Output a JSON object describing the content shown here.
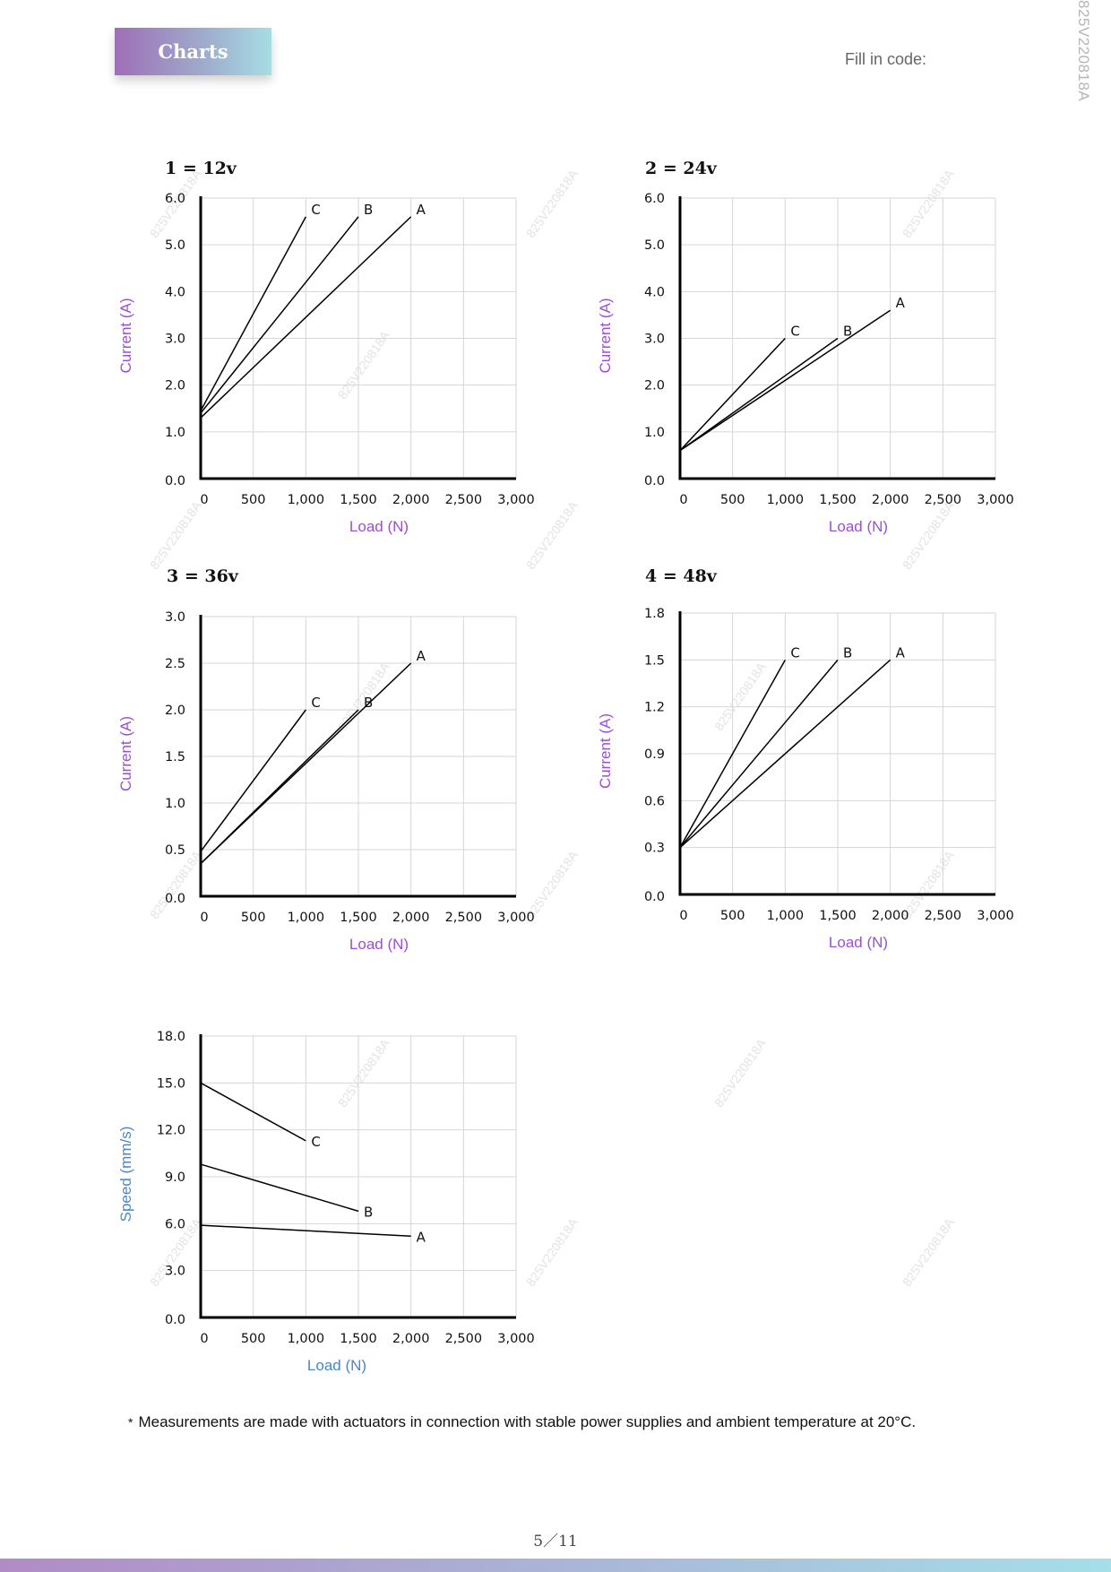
{
  "header": {
    "badge_label": "Charts",
    "fill_code_label": "Fill in code:",
    "side_code": "825V220818A"
  },
  "footnote": {
    "marker": "*",
    "text": "Measurements are made with actuators in connection with stable power supplies and ambient temperature at 20°C."
  },
  "page": {
    "number": "5／11"
  },
  "watermark": "825V220818A",
  "colors": {
    "current_label": "#9b4fd1",
    "speed_label": "#4a86c8",
    "badge_start": "#9e6fb6",
    "badge_end": "#a6dde3"
  },
  "chart_data": [
    {
      "type": "line",
      "title": "1 = 12v",
      "xlabel": "Load (N)",
      "ylabel": "Current (A)",
      "xlim": [
        0,
        3000
      ],
      "ylim": [
        0,
        6
      ],
      "xticks": [
        "0",
        "500",
        "1,000",
        "1,500",
        "2,000",
        "2,500",
        "3,000"
      ],
      "yticks": [
        "0.0",
        "1.0",
        "2.0",
        "3.0",
        "4.0",
        "5.0",
        "6.0"
      ],
      "grid": true,
      "series": [
        {
          "name": "C",
          "x": [
            0,
            1000
          ],
          "y": [
            1.45,
            5.6
          ]
        },
        {
          "name": "B",
          "x": [
            0,
            1500
          ],
          "y": [
            1.4,
            5.6
          ]
        },
        {
          "name": "A",
          "x": [
            0,
            2000
          ],
          "y": [
            1.3,
            5.6
          ]
        }
      ]
    },
    {
      "type": "line",
      "title": "2 = 24v",
      "xlabel": "Load (N)",
      "ylabel": "Current (A)",
      "xlim": [
        0,
        3000
      ],
      "ylim": [
        0,
        6
      ],
      "xticks": [
        "0",
        "500",
        "1,000",
        "1,500",
        "2,000",
        "2,500",
        "3,000"
      ],
      "yticks": [
        "0.0",
        "1.0",
        "2.0",
        "3.0",
        "4.0",
        "5.0",
        "6.0"
      ],
      "grid": true,
      "series": [
        {
          "name": "C",
          "x": [
            0,
            1000
          ],
          "y": [
            0.6,
            3.0
          ]
        },
        {
          "name": "B",
          "x": [
            0,
            1500
          ],
          "y": [
            0.6,
            3.0
          ]
        },
        {
          "name": "A",
          "x": [
            0,
            2000
          ],
          "y": [
            0.6,
            3.6
          ]
        }
      ]
    },
    {
      "type": "line",
      "title": "3 = 36v",
      "xlabel": "Load (N)",
      "ylabel": "Current (A)",
      "xlim": [
        0,
        3000
      ],
      "ylim": [
        0,
        3
      ],
      "xticks": [
        "0",
        "500",
        "1,000",
        "1,500",
        "2,000",
        "2,500",
        "3,000"
      ],
      "yticks": [
        "0.0",
        "0.5",
        "1.0",
        "1.5",
        "2.0",
        "2.5",
        "3.0"
      ],
      "grid": true,
      "series": [
        {
          "name": "C",
          "x": [
            0,
            1000
          ],
          "y": [
            0.48,
            2.0
          ]
        },
        {
          "name": "B",
          "x": [
            0,
            1500
          ],
          "y": [
            0.35,
            2.0
          ]
        },
        {
          "name": "A",
          "x": [
            0,
            2000
          ],
          "y": [
            0.35,
            2.5
          ]
        }
      ]
    },
    {
      "type": "line",
      "title": "4 = 48v",
      "xlabel": "Load (N)",
      "ylabel": "Current (A)",
      "xlim": [
        0,
        3000
      ],
      "ylim": [
        0,
        1.8
      ],
      "xticks": [
        "0",
        "500",
        "1,000",
        "1,500",
        "2,000",
        "2,500",
        "3,000"
      ],
      "yticks": [
        "0.0",
        "0.3",
        "0.6",
        "0.9",
        "1.2",
        "1.5",
        "1.8"
      ],
      "grid": true,
      "series": [
        {
          "name": "C",
          "x": [
            0,
            1000
          ],
          "y": [
            0.3,
            1.5
          ]
        },
        {
          "name": "B",
          "x": [
            0,
            1500
          ],
          "y": [
            0.3,
            1.5
          ]
        },
        {
          "name": "A",
          "x": [
            0,
            2000
          ],
          "y": [
            0.3,
            1.5
          ]
        }
      ]
    },
    {
      "type": "line",
      "title": "",
      "xlabel": "Load (N)",
      "ylabel": "Speed (mm/s)",
      "xlim": [
        0,
        3000
      ],
      "ylim": [
        0,
        18
      ],
      "xticks": [
        "0",
        "500",
        "1,000",
        "1,500",
        "2,000",
        "2,500",
        "3,000"
      ],
      "yticks": [
        "0.0",
        "3.0",
        "6.0",
        "9.0",
        "12.0",
        "15.0",
        "18.0"
      ],
      "grid": true,
      "series": [
        {
          "name": "C",
          "x": [
            0,
            1000
          ],
          "y": [
            15.0,
            11.3
          ]
        },
        {
          "name": "B",
          "x": [
            0,
            1500
          ],
          "y": [
            9.8,
            6.8
          ]
        },
        {
          "name": "A",
          "x": [
            0,
            2000
          ],
          "y": [
            5.9,
            5.2
          ]
        }
      ]
    }
  ]
}
